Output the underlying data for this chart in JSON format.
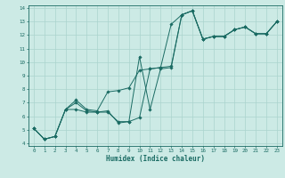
{
  "title": "",
  "xlabel": "Humidex (Indice chaleur)",
  "xlim": [
    -0.5,
    23.5
  ],
  "ylim": [
    3.8,
    14.2
  ],
  "xticks": [
    0,
    1,
    2,
    3,
    4,
    5,
    6,
    7,
    8,
    9,
    10,
    11,
    12,
    13,
    14,
    15,
    16,
    17,
    18,
    19,
    20,
    21,
    22,
    23
  ],
  "yticks": [
    4,
    5,
    6,
    7,
    8,
    9,
    10,
    11,
    12,
    13,
    14
  ],
  "background_color": "#cceae5",
  "line_color": "#1a6b63",
  "grid_color": "#aad4ce",
  "series": [
    [
      5.1,
      4.3,
      4.5,
      6.5,
      7.0,
      6.4,
      6.3,
      6.3,
      5.6,
      5.6,
      5.9,
      9.5,
      9.6,
      12.8,
      13.5,
      13.8,
      11.7,
      11.9,
      11.9,
      12.4,
      12.6,
      12.1,
      12.1,
      13.0
    ],
    [
      5.1,
      4.3,
      4.5,
      6.5,
      7.2,
      6.5,
      6.4,
      7.8,
      7.9,
      8.1,
      9.4,
      9.5,
      9.6,
      9.7,
      13.5,
      13.8,
      11.7,
      11.9,
      11.9,
      12.4,
      12.6,
      12.1,
      12.1,
      13.0
    ],
    [
      5.1,
      4.3,
      4.5,
      6.5,
      6.5,
      6.3,
      6.3,
      6.4,
      5.5,
      5.6,
      10.4,
      6.5,
      9.5,
      9.6,
      13.5,
      13.8,
      11.7,
      11.9,
      11.9,
      12.4,
      12.6,
      12.1,
      12.1,
      13.0
    ]
  ]
}
